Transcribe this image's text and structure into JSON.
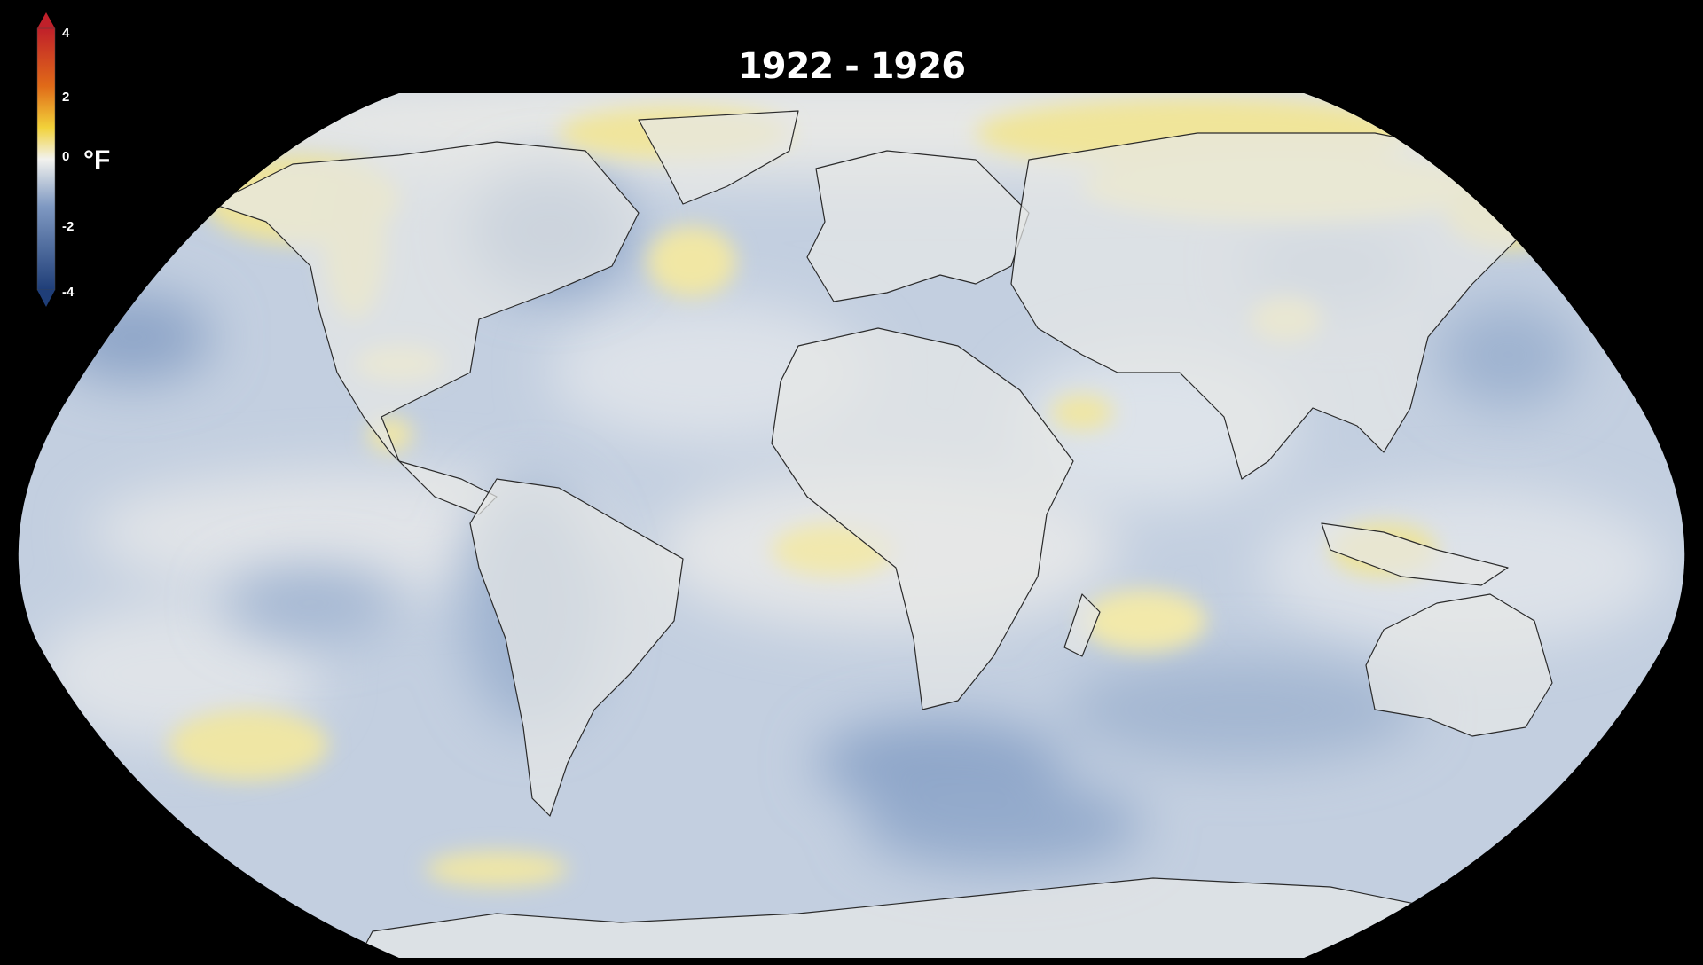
{
  "title": "1922 - 1926",
  "legend": {
    "unit": "°F",
    "ticks": [
      "4",
      "2",
      "0",
      "-2",
      "-4"
    ],
    "min": -4,
    "max": 4,
    "colors": {
      "high": "#c0202a",
      "warm": "#e06a18",
      "mild_warm": "#f2d23a",
      "neutral": "#f2f2ee",
      "mild_cool": "#a9bcd6",
      "cool": "#4a6fa5",
      "low": "#1f3e78"
    }
  },
  "map": {
    "projection": "robinson",
    "ocean_color": "#c3cfe0",
    "land_color": "#e6e6e4"
  }
}
